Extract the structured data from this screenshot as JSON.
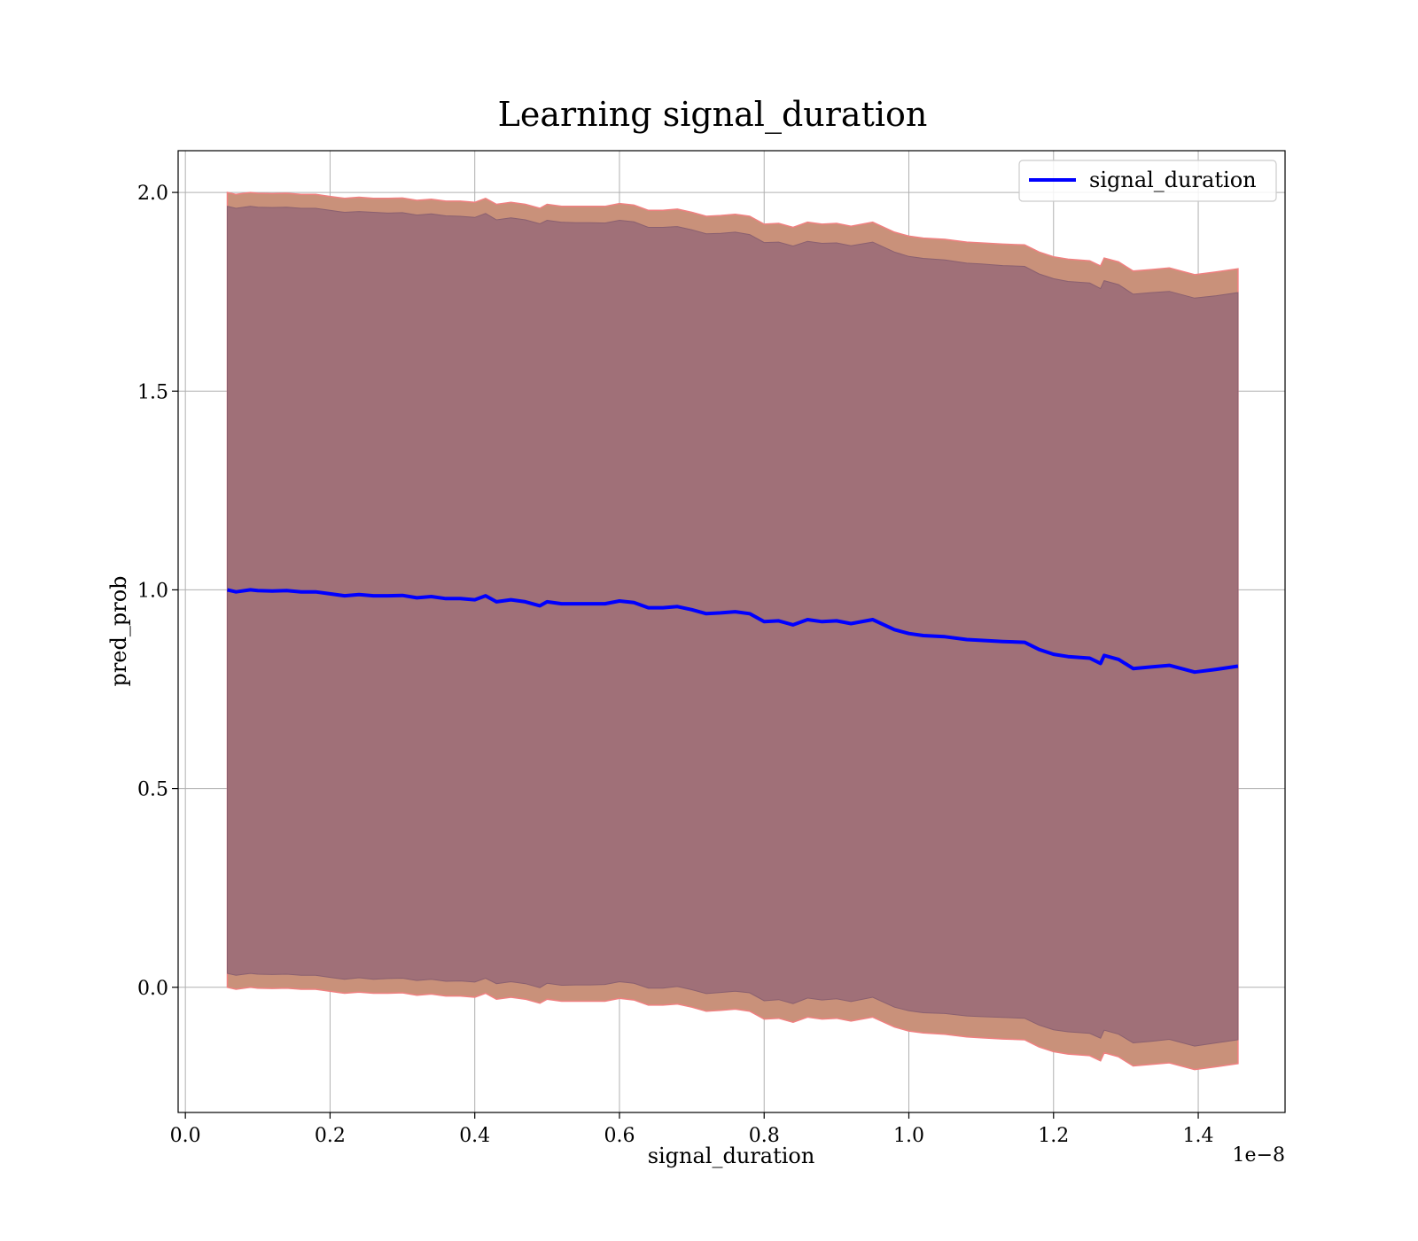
{
  "chart_data": {
    "type": "line",
    "title": "Learning signal_duration",
    "xlabel": "signal_duration",
    "ylabel": "pred_prob",
    "x_offset_label": "1e−8",
    "x_scale_exponent": -8,
    "xlim": [
      -0.01,
      1.52
    ],
    "ylim": [
      -0.315,
      2.105
    ],
    "x_ticks": [
      0.0,
      0.2,
      0.4,
      0.6,
      0.8,
      1.0,
      1.2,
      1.4
    ],
    "x_tick_labels": [
      "0.0",
      "0.2",
      "0.4",
      "0.6",
      "0.8",
      "1.0",
      "1.2",
      "1.4"
    ],
    "y_ticks": [
      0.0,
      0.5,
      1.0,
      1.5,
      2.0
    ],
    "y_tick_labels": [
      "0.0",
      "0.5",
      "1.0",
      "1.5",
      "2.0"
    ],
    "grid": true,
    "legend_position": "top-right",
    "colors": {
      "line": "#0000ff",
      "band_outer": "#c9917a",
      "band_outer_edge": "#f08080",
      "band_inner": "#a07078",
      "grid": "#b0b0b0"
    },
    "series": [
      {
        "name": "signal_duration",
        "x": [
          0.058,
          0.07,
          0.09,
          0.1,
          0.12,
          0.14,
          0.16,
          0.18,
          0.2,
          0.22,
          0.24,
          0.26,
          0.28,
          0.3,
          0.32,
          0.34,
          0.36,
          0.38,
          0.4,
          0.415,
          0.43,
          0.45,
          0.47,
          0.49,
          0.5,
          0.52,
          0.54,
          0.56,
          0.58,
          0.6,
          0.62,
          0.64,
          0.66,
          0.68,
          0.7,
          0.72,
          0.74,
          0.76,
          0.78,
          0.8,
          0.82,
          0.84,
          0.86,
          0.88,
          0.9,
          0.92,
          0.95,
          0.98,
          1.0,
          1.02,
          1.05,
          1.08,
          1.1,
          1.13,
          1.16,
          1.18,
          1.2,
          1.22,
          1.25,
          1.265,
          1.27,
          1.29,
          1.31,
          1.335,
          1.36,
          1.395,
          1.425,
          1.455
        ],
        "mean": [
          1.0,
          0.995,
          1.0,
          0.998,
          0.997,
          0.998,
          0.995,
          0.995,
          0.99,
          0.985,
          0.988,
          0.985,
          0.985,
          0.986,
          0.98,
          0.983,
          0.978,
          0.978,
          0.975,
          0.985,
          0.97,
          0.975,
          0.97,
          0.96,
          0.97,
          0.965,
          0.965,
          0.965,
          0.965,
          0.972,
          0.968,
          0.955,
          0.955,
          0.958,
          0.95,
          0.94,
          0.942,
          0.945,
          0.94,
          0.92,
          0.922,
          0.912,
          0.925,
          0.92,
          0.922,
          0.915,
          0.925,
          0.9,
          0.89,
          0.885,
          0.882,
          0.875,
          0.873,
          0.87,
          0.868,
          0.85,
          0.838,
          0.832,
          0.828,
          0.815,
          0.835,
          0.825,
          0.802,
          0.806,
          0.81,
          0.793,
          0.8,
          0.808
        ],
        "band_outer_upper": [
          2.0,
          1.995,
          2.0,
          1.998,
          1.997,
          1.998,
          1.995,
          1.995,
          1.99,
          1.985,
          1.988,
          1.985,
          1.985,
          1.986,
          1.98,
          1.983,
          1.978,
          1.978,
          1.975,
          1.985,
          1.97,
          1.975,
          1.97,
          1.96,
          1.97,
          1.965,
          1.965,
          1.965,
          1.965,
          1.972,
          1.968,
          1.955,
          1.955,
          1.958,
          1.95,
          1.94,
          1.942,
          1.945,
          1.94,
          1.92,
          1.922,
          1.912,
          1.925,
          1.92,
          1.922,
          1.915,
          1.925,
          1.9,
          1.89,
          1.885,
          1.882,
          1.875,
          1.873,
          1.87,
          1.868,
          1.85,
          1.838,
          1.832,
          1.828,
          1.815,
          1.835,
          1.825,
          1.802,
          1.806,
          1.81,
          1.793,
          1.8,
          1.808
        ],
        "band_outer_lower": [
          0.0,
          -0.005,
          0.0,
          -0.002,
          -0.003,
          -0.002,
          -0.005,
          -0.005,
          -0.01,
          -0.015,
          -0.012,
          -0.015,
          -0.015,
          -0.014,
          -0.02,
          -0.017,
          -0.022,
          -0.022,
          -0.025,
          -0.015,
          -0.03,
          -0.025,
          -0.03,
          -0.04,
          -0.03,
          -0.035,
          -0.035,
          -0.035,
          -0.035,
          -0.028,
          -0.032,
          -0.045,
          -0.045,
          -0.042,
          -0.05,
          -0.06,
          -0.058,
          -0.055,
          -0.06,
          -0.08,
          -0.078,
          -0.088,
          -0.075,
          -0.08,
          -0.078,
          -0.085,
          -0.075,
          -0.1,
          -0.11,
          -0.115,
          -0.118,
          -0.125,
          -0.127,
          -0.13,
          -0.132,
          -0.15,
          -0.162,
          -0.168,
          -0.172,
          -0.185,
          -0.165,
          -0.175,
          -0.198,
          -0.194,
          -0.19,
          -0.207,
          -0.2,
          -0.192
        ],
        "band_inner_upper": [
          1.965,
          1.96,
          1.965,
          1.963,
          1.962,
          1.963,
          1.96,
          1.96,
          1.955,
          1.95,
          1.952,
          1.95,
          1.948,
          1.949,
          1.943,
          1.946,
          1.941,
          1.94,
          1.937,
          1.947,
          1.931,
          1.936,
          1.931,
          1.921,
          1.93,
          1.925,
          1.924,
          1.924,
          1.923,
          1.93,
          1.926,
          1.912,
          1.912,
          1.914,
          1.906,
          1.896,
          1.897,
          1.9,
          1.894,
          1.874,
          1.875,
          1.865,
          1.877,
          1.872,
          1.873,
          1.866,
          1.875,
          1.85,
          1.839,
          1.834,
          1.83,
          1.822,
          1.82,
          1.816,
          1.814,
          1.795,
          1.783,
          1.776,
          1.772,
          1.758,
          1.778,
          1.768,
          1.744,
          1.748,
          1.751,
          1.734,
          1.74,
          1.748
        ],
        "band_inner_lower": [
          0.035,
          0.03,
          0.035,
          0.033,
          0.032,
          0.033,
          0.03,
          0.03,
          0.025,
          0.02,
          0.024,
          0.02,
          0.022,
          0.023,
          0.017,
          0.02,
          0.015,
          0.016,
          0.013,
          0.023,
          0.009,
          0.014,
          0.009,
          -0.001,
          0.01,
          0.005,
          0.006,
          0.006,
          0.007,
          0.014,
          0.01,
          -0.002,
          -0.002,
          0.002,
          -0.006,
          -0.016,
          -0.013,
          -0.01,
          -0.014,
          -0.034,
          -0.031,
          -0.041,
          -0.027,
          -0.032,
          -0.029,
          -0.036,
          -0.025,
          -0.05,
          -0.059,
          -0.064,
          -0.066,
          -0.072,
          -0.074,
          -0.076,
          -0.078,
          -0.095,
          -0.107,
          -0.112,
          -0.116,
          -0.128,
          -0.108,
          -0.118,
          -0.14,
          -0.136,
          -0.131,
          -0.148,
          -0.14,
          -0.132
        ]
      }
    ]
  }
}
